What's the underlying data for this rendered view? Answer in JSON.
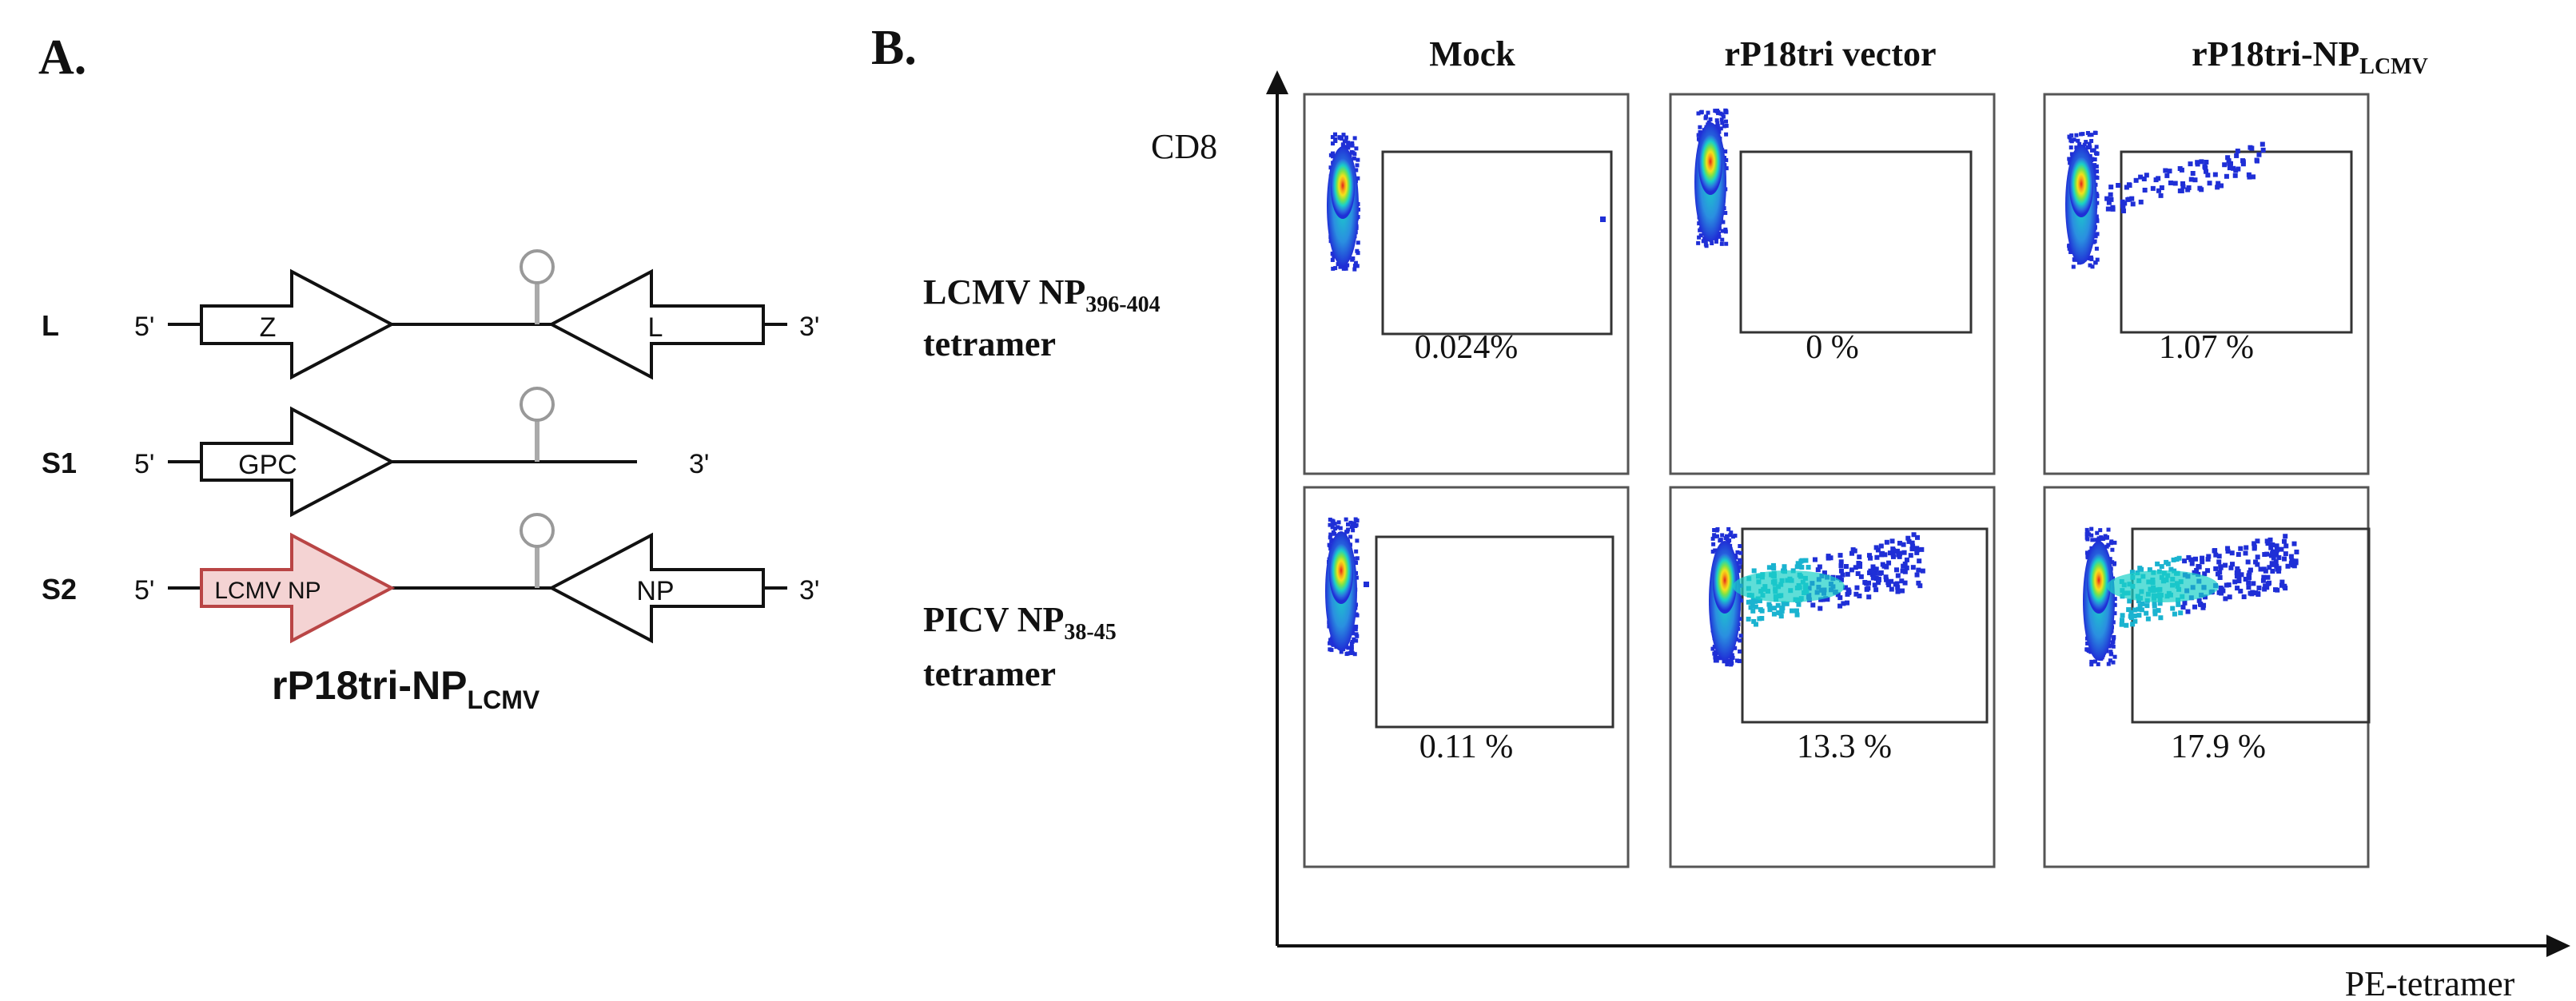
{
  "panel_a": {
    "label": "A.",
    "segments": [
      {
        "name": "L",
        "five": "5'",
        "three": "3'",
        "genes": [
          "Z",
          "L"
        ]
      },
      {
        "name": "S1",
        "five": "5'",
        "three": "3'",
        "genes": [
          "GPC"
        ]
      },
      {
        "name": "S2",
        "five": "5'",
        "three": "3'",
        "genes": [
          "LCMV NP",
          "NP"
        ]
      }
    ],
    "title_main": "rP18tri-NP",
    "title_sub": "LCMV",
    "colors": {
      "lcmv_fill": "#f4d3d3",
      "lcmv_stroke": "#b94545",
      "line": "#111111"
    }
  },
  "panel_b": {
    "label": "B.",
    "columns": [
      {
        "main": "Mock",
        "sub": ""
      },
      {
        "main": "rP18tri vector",
        "sub": ""
      },
      {
        "main": "rP18tri-NP",
        "sub": "LCMV"
      }
    ],
    "rows": [
      {
        "line1_main": "LCMV NP",
        "line1_sub": "396-404",
        "line2": "tetramer"
      },
      {
        "line1_main": "PICV NP",
        "line1_sub": "38-45",
        "line2": "tetramer"
      }
    ],
    "y_axis_label": "CD8",
    "x_axis_label": "PE-tetramer",
    "percentages": [
      [
        "0.024%",
        "0 %",
        "1.07 %"
      ],
      [
        "0.11 %",
        "13.3 %",
        "17.9 %"
      ]
    ],
    "colors": {
      "heat_low": "#1f2fd6",
      "heat_mid": "#1ad0c8",
      "heat_high1": "#7be34a",
      "heat_high2": "#f5e11a",
      "heat_core": "#e3221b"
    }
  }
}
